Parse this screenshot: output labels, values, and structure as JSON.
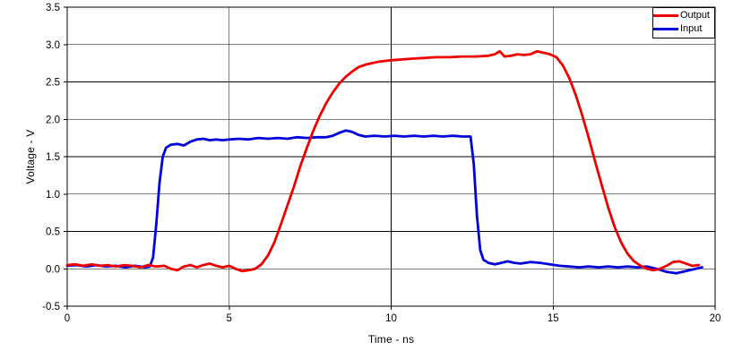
{
  "chart_data": {
    "type": "line",
    "title": "",
    "xlabel": "Time - ns",
    "ylabel": "Voltage - V",
    "xlim": [
      0,
      20
    ],
    "ylim": [
      -0.5,
      3.5
    ],
    "xticks": [
      0,
      5,
      10,
      15,
      20
    ],
    "xtick_labels": [
      "0",
      "5",
      "10",
      "15",
      "20"
    ],
    "yticks": [
      3.5,
      3.0,
      2.5,
      2.0,
      1.5,
      1.0,
      0.5,
      0.0,
      -0.5
    ],
    "ytick_labels": [
      "3.5",
      "3.0",
      "2.5",
      "2.0",
      "1.5",
      "1.0",
      "0.5",
      "0.0",
      "-0.5"
    ],
    "grid": true,
    "legend_position": "top-right",
    "series": [
      {
        "name": "Output",
        "color": "#ee0000",
        "points": [
          [
            0,
            0.05
          ],
          [
            0.25,
            0.06
          ],
          [
            0.5,
            0.04
          ],
          [
            0.75,
            0.06
          ],
          [
            1,
            0.04
          ],
          [
            1.25,
            0.05
          ],
          [
            1.5,
            0.03
          ],
          [
            1.75,
            0.05
          ],
          [
            2,
            0.04
          ],
          [
            2.25,
            0.02
          ],
          [
            2.5,
            0.05
          ],
          [
            2.75,
            0.03
          ],
          [
            3,
            0.04
          ],
          [
            3.2,
            0.0
          ],
          [
            3.4,
            -0.02
          ],
          [
            3.6,
            0.03
          ],
          [
            3.8,
            0.05
          ],
          [
            4,
            0.02
          ],
          [
            4.2,
            0.05
          ],
          [
            4.4,
            0.07
          ],
          [
            4.6,
            0.04
          ],
          [
            4.8,
            0.02
          ],
          [
            5,
            0.04
          ],
          [
            5.2,
            0.0
          ],
          [
            5.4,
            -0.03
          ],
          [
            5.6,
            -0.02
          ],
          [
            5.8,
            0.0
          ],
          [
            6,
            0.06
          ],
          [
            6.2,
            0.18
          ],
          [
            6.4,
            0.36
          ],
          [
            6.6,
            0.6
          ],
          [
            6.8,
            0.85
          ],
          [
            7,
            1.1
          ],
          [
            7.2,
            1.38
          ],
          [
            7.4,
            1.62
          ],
          [
            7.6,
            1.85
          ],
          [
            7.8,
            2.05
          ],
          [
            8,
            2.22
          ],
          [
            8.2,
            2.36
          ],
          [
            8.4,
            2.48
          ],
          [
            8.6,
            2.57
          ],
          [
            8.8,
            2.64
          ],
          [
            9,
            2.7
          ],
          [
            9.2,
            2.73
          ],
          [
            9.4,
            2.75
          ],
          [
            9.6,
            2.77
          ],
          [
            9.8,
            2.78
          ],
          [
            10,
            2.79
          ],
          [
            10.3,
            2.8
          ],
          [
            10.6,
            2.81
          ],
          [
            11,
            2.82
          ],
          [
            11.4,
            2.83
          ],
          [
            11.8,
            2.83
          ],
          [
            12.2,
            2.84
          ],
          [
            12.6,
            2.84
          ],
          [
            13,
            2.85
          ],
          [
            13.2,
            2.87
          ],
          [
            13.35,
            2.91
          ],
          [
            13.5,
            2.84
          ],
          [
            13.7,
            2.85
          ],
          [
            13.9,
            2.87
          ],
          [
            14.1,
            2.86
          ],
          [
            14.3,
            2.87
          ],
          [
            14.5,
            2.91
          ],
          [
            14.7,
            2.89
          ],
          [
            14.9,
            2.87
          ],
          [
            15.1,
            2.83
          ],
          [
            15.3,
            2.72
          ],
          [
            15.5,
            2.55
          ],
          [
            15.7,
            2.32
          ],
          [
            15.9,
            2.05
          ],
          [
            16.1,
            1.75
          ],
          [
            16.3,
            1.43
          ],
          [
            16.5,
            1.12
          ],
          [
            16.7,
            0.82
          ],
          [
            16.9,
            0.56
          ],
          [
            17.1,
            0.35
          ],
          [
            17.3,
            0.2
          ],
          [
            17.5,
            0.1
          ],
          [
            17.7,
            0.04
          ],
          [
            17.9,
            0.0
          ],
          [
            18.1,
            -0.02
          ],
          [
            18.3,
            0.0
          ],
          [
            18.5,
            0.04
          ],
          [
            18.7,
            0.09
          ],
          [
            18.9,
            0.1
          ],
          [
            19.1,
            0.07
          ],
          [
            19.3,
            0.04
          ],
          [
            19.5,
            0.05
          ]
        ]
      },
      {
        "name": "Input",
        "color": "#0000dd",
        "points": [
          [
            0,
            0.04
          ],
          [
            0.3,
            0.05
          ],
          [
            0.6,
            0.03
          ],
          [
            0.9,
            0.05
          ],
          [
            1.2,
            0.03
          ],
          [
            1.5,
            0.04
          ],
          [
            1.8,
            0.02
          ],
          [
            2.1,
            0.04
          ],
          [
            2.4,
            0.02
          ],
          [
            2.55,
            0.03
          ],
          [
            2.65,
            0.15
          ],
          [
            2.75,
            0.6
          ],
          [
            2.85,
            1.15
          ],
          [
            2.95,
            1.5
          ],
          [
            3.05,
            1.62
          ],
          [
            3.2,
            1.66
          ],
          [
            3.4,
            1.67
          ],
          [
            3.6,
            1.65
          ],
          [
            3.8,
            1.7
          ],
          [
            4,
            1.73
          ],
          [
            4.2,
            1.74
          ],
          [
            4.4,
            1.72
          ],
          [
            4.6,
            1.73
          ],
          [
            4.8,
            1.72
          ],
          [
            5,
            1.73
          ],
          [
            5.3,
            1.74
          ],
          [
            5.6,
            1.73
          ],
          [
            5.9,
            1.75
          ],
          [
            6.2,
            1.74
          ],
          [
            6.5,
            1.75
          ],
          [
            6.8,
            1.74
          ],
          [
            7.1,
            1.76
          ],
          [
            7.4,
            1.75
          ],
          [
            7.7,
            1.76
          ],
          [
            8,
            1.76
          ],
          [
            8.2,
            1.78
          ],
          [
            8.4,
            1.82
          ],
          [
            8.6,
            1.85
          ],
          [
            8.8,
            1.83
          ],
          [
            9,
            1.79
          ],
          [
            9.2,
            1.77
          ],
          [
            9.5,
            1.78
          ],
          [
            9.8,
            1.77
          ],
          [
            10.1,
            1.78
          ],
          [
            10.4,
            1.77
          ],
          [
            10.7,
            1.78
          ],
          [
            11,
            1.77
          ],
          [
            11.3,
            1.78
          ],
          [
            11.6,
            1.77
          ],
          [
            11.9,
            1.78
          ],
          [
            12.2,
            1.77
          ],
          [
            12.45,
            1.77
          ],
          [
            12.55,
            1.4
          ],
          [
            12.65,
            0.7
          ],
          [
            12.75,
            0.25
          ],
          [
            12.85,
            0.12
          ],
          [
            13,
            0.08
          ],
          [
            13.2,
            0.06
          ],
          [
            13.4,
            0.08
          ],
          [
            13.6,
            0.1
          ],
          [
            13.8,
            0.08
          ],
          [
            14,
            0.07
          ],
          [
            14.3,
            0.09
          ],
          [
            14.6,
            0.08
          ],
          [
            14.9,
            0.06
          ],
          [
            15.2,
            0.04
          ],
          [
            15.5,
            0.03
          ],
          [
            15.8,
            0.02
          ],
          [
            16.1,
            0.03
          ],
          [
            16.4,
            0.02
          ],
          [
            16.7,
            0.03
          ],
          [
            17,
            0.02
          ],
          [
            17.3,
            0.03
          ],
          [
            17.6,
            0.02
          ],
          [
            17.9,
            0.03
          ],
          [
            18.2,
            0.0
          ],
          [
            18.5,
            -0.04
          ],
          [
            18.8,
            -0.06
          ],
          [
            19.1,
            -0.03
          ],
          [
            19.4,
            0.0
          ],
          [
            19.6,
            0.02
          ]
        ]
      }
    ]
  }
}
